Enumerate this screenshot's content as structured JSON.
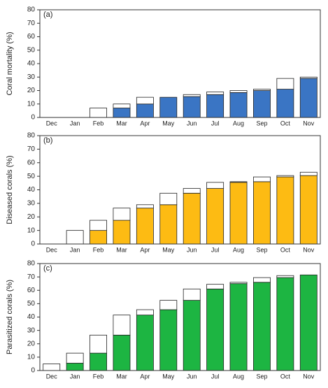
{
  "chart_data": [
    {
      "type": "bar",
      "stacked": true,
      "panel_label": "(a)",
      "y_label": "Coral mortality (%)",
      "categories": [
        "Dec",
        "Jan",
        "Feb",
        "Mar",
        "Apr",
        "May",
        "Jun",
        "Jul",
        "Aug",
        "Sep",
        "Oct",
        "Nov"
      ],
      "series": [
        {
          "color": "#3a75c4",
          "values": [
            0,
            0,
            0,
            7,
            10,
            15,
            15.5,
            17,
            18.5,
            20,
            21,
            29
          ]
        },
        {
          "color": "#ffffff",
          "values": [
            0,
            0,
            7,
            3,
            5,
            0,
            1.5,
            2,
            1.5,
            1,
            8,
            1
          ]
        }
      ],
      "ylim": [
        0,
        80
      ],
      "yticks": [
        0,
        10,
        20,
        30,
        40,
        50,
        60,
        70,
        80
      ]
    },
    {
      "type": "bar",
      "stacked": true,
      "panel_label": "(b)",
      "y_label": "Diseased corals (%)",
      "categories": [
        "Dec",
        "Jan",
        "Feb",
        "Mar",
        "Apr",
        "May",
        "Jun",
        "Jul",
        "Aug",
        "Sep",
        "Oct",
        "Nov"
      ],
      "series": [
        {
          "color": "#fdbb13",
          "values": [
            0,
            0,
            10,
            17.5,
            26.5,
            29,
            37.5,
            41,
            45.5,
            46,
            49.5,
            50.5
          ]
        },
        {
          "color": "#ffffff",
          "values": [
            0,
            10,
            7.5,
            9,
            2.5,
            8.5,
            3.5,
            4.5,
            0.5,
            3.5,
            1,
            2.5
          ]
        }
      ],
      "ylim": [
        0,
        80
      ],
      "yticks": [
        0,
        10,
        20,
        30,
        40,
        50,
        60,
        70,
        80
      ]
    },
    {
      "type": "bar",
      "stacked": true,
      "panel_label": "(c)",
      "y_label": "Parasitized corals (%)",
      "categories": [
        "Dec",
        "Jan",
        "Feb",
        "Mar",
        "Apr",
        "May",
        "Jun",
        "Jul",
        "Aug",
        "Sep",
        "Oct",
        "Nov"
      ],
      "series": [
        {
          "color": "#1db542",
          "values": [
            0,
            5.5,
            13,
            26.5,
            41.5,
            45.5,
            52.5,
            61,
            65,
            66,
            69.5,
            71.5
          ]
        },
        {
          "color": "#ffffff",
          "values": [
            5,
            7.5,
            13.5,
            15,
            4,
            7,
            8.5,
            3.5,
            1,
            3.5,
            1.5,
            0
          ]
        }
      ],
      "ylim": [
        0,
        80
      ],
      "yticks": [
        0,
        10,
        20,
        30,
        40,
        50,
        60,
        70,
        80
      ]
    }
  ]
}
